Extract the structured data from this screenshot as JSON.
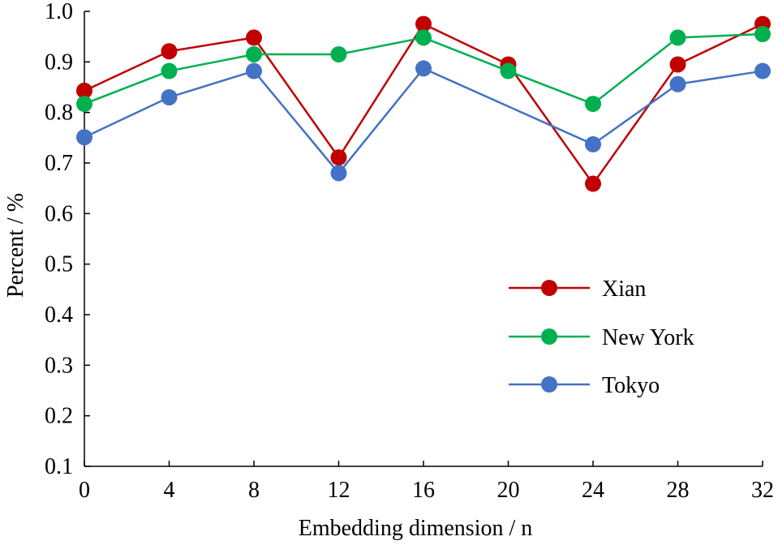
{
  "chart_data": {
    "type": "line",
    "title": "",
    "xlabel": "Embedding dimension / n",
    "ylabel": "Percent / %",
    "x": [
      0,
      4,
      8,
      12,
      16,
      20,
      24,
      28,
      32
    ],
    "xlim": [
      0,
      32
    ],
    "ylim": [
      0.1,
      1.0
    ],
    "x_ticks": [
      "0",
      "4",
      "8",
      "12",
      "16",
      "20",
      "24",
      "28",
      "32"
    ],
    "y_ticks": [
      "0.1",
      "0.2",
      "0.3",
      "0.4",
      "0.5",
      "0.6",
      "0.7",
      "0.8",
      "0.9",
      "1.0"
    ],
    "grid": false,
    "legend_position": "right",
    "series": [
      {
        "name": "Xian",
        "color": "#C00000",
        "values": [
          0.843,
          0.921,
          0.948,
          0.711,
          0.975,
          0.895,
          0.659,
          0.895,
          0.975
        ]
      },
      {
        "name": "New York",
        "color": "#00B050",
        "values": [
          0.817,
          0.882,
          0.915,
          0.915,
          0.948,
          0.882,
          0.817,
          0.948,
          0.955
        ]
      },
      {
        "name": "Tokyo",
        "color": "#4472C4",
        "values": [
          0.751,
          0.83,
          0.882,
          0.68,
          0.887,
          null,
          0.737,
          0.856,
          0.882
        ]
      }
    ]
  }
}
